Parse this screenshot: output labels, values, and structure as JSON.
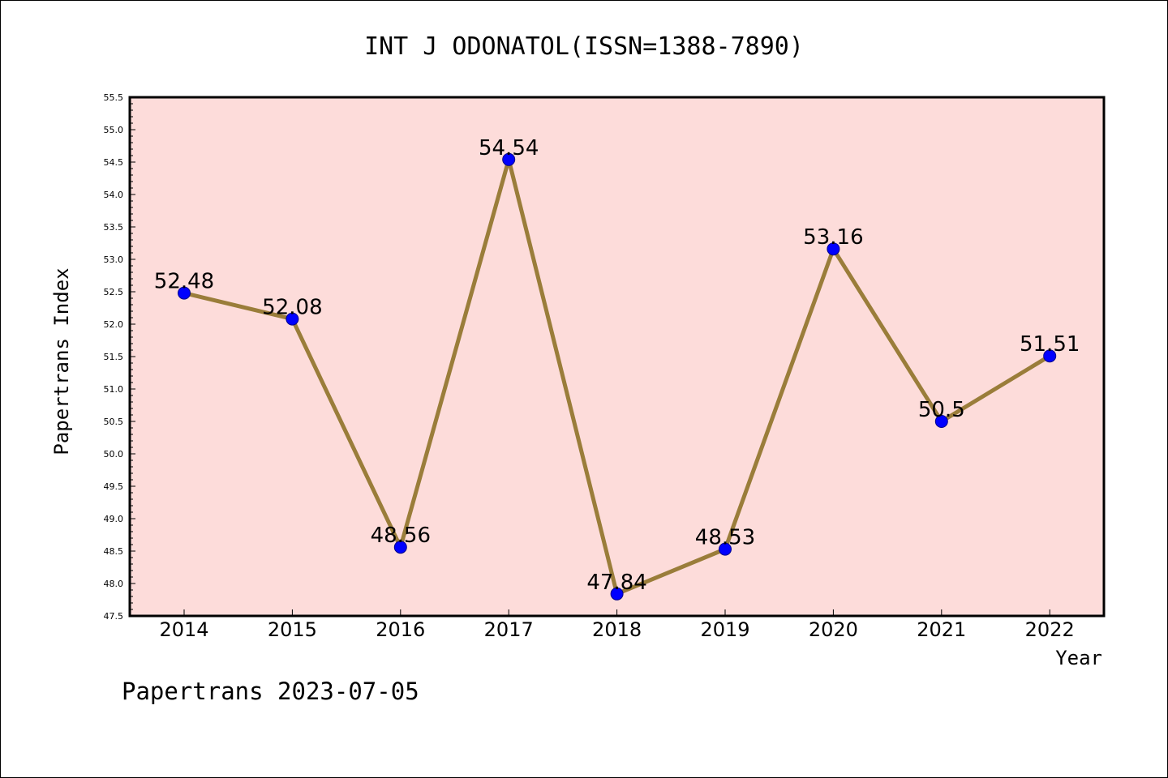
{
  "chart_data": {
    "type": "line",
    "title": "INT J ODONATOL(ISSN=1388-7890)",
    "xlabel": "Year",
    "ylabel": "Papertrans Index",
    "categories": [
      "2014",
      "2015",
      "2016",
      "2017",
      "2018",
      "2019",
      "2020",
      "2021",
      "2022"
    ],
    "series": [
      {
        "values": [
          52.48,
          52.08,
          48.56,
          54.54,
          47.84,
          48.53,
          53.16,
          50.5,
          51.51
        ],
        "labels": [
          "52.48",
          "52.08",
          "48.56",
          "54.54",
          "47.84",
          "48.53",
          "53.16",
          "50.5",
          "51.51"
        ]
      }
    ],
    "ylim": [
      47.5,
      55.5
    ],
    "yticks": [
      "47.5",
      "48.0",
      "48.5",
      "49.0",
      "49.5",
      "50.0",
      "50.5",
      "51.0",
      "51.5",
      "52.0",
      "52.5",
      "53.0",
      "53.5",
      "54.0",
      "54.5",
      "55.0",
      "55.5"
    ],
    "grid": false,
    "plot_background": "#fddcda",
    "line_color": "#9a7d3a",
    "marker_color": "#0000ff",
    "footer": "Papertrans 2023-07-05"
  }
}
